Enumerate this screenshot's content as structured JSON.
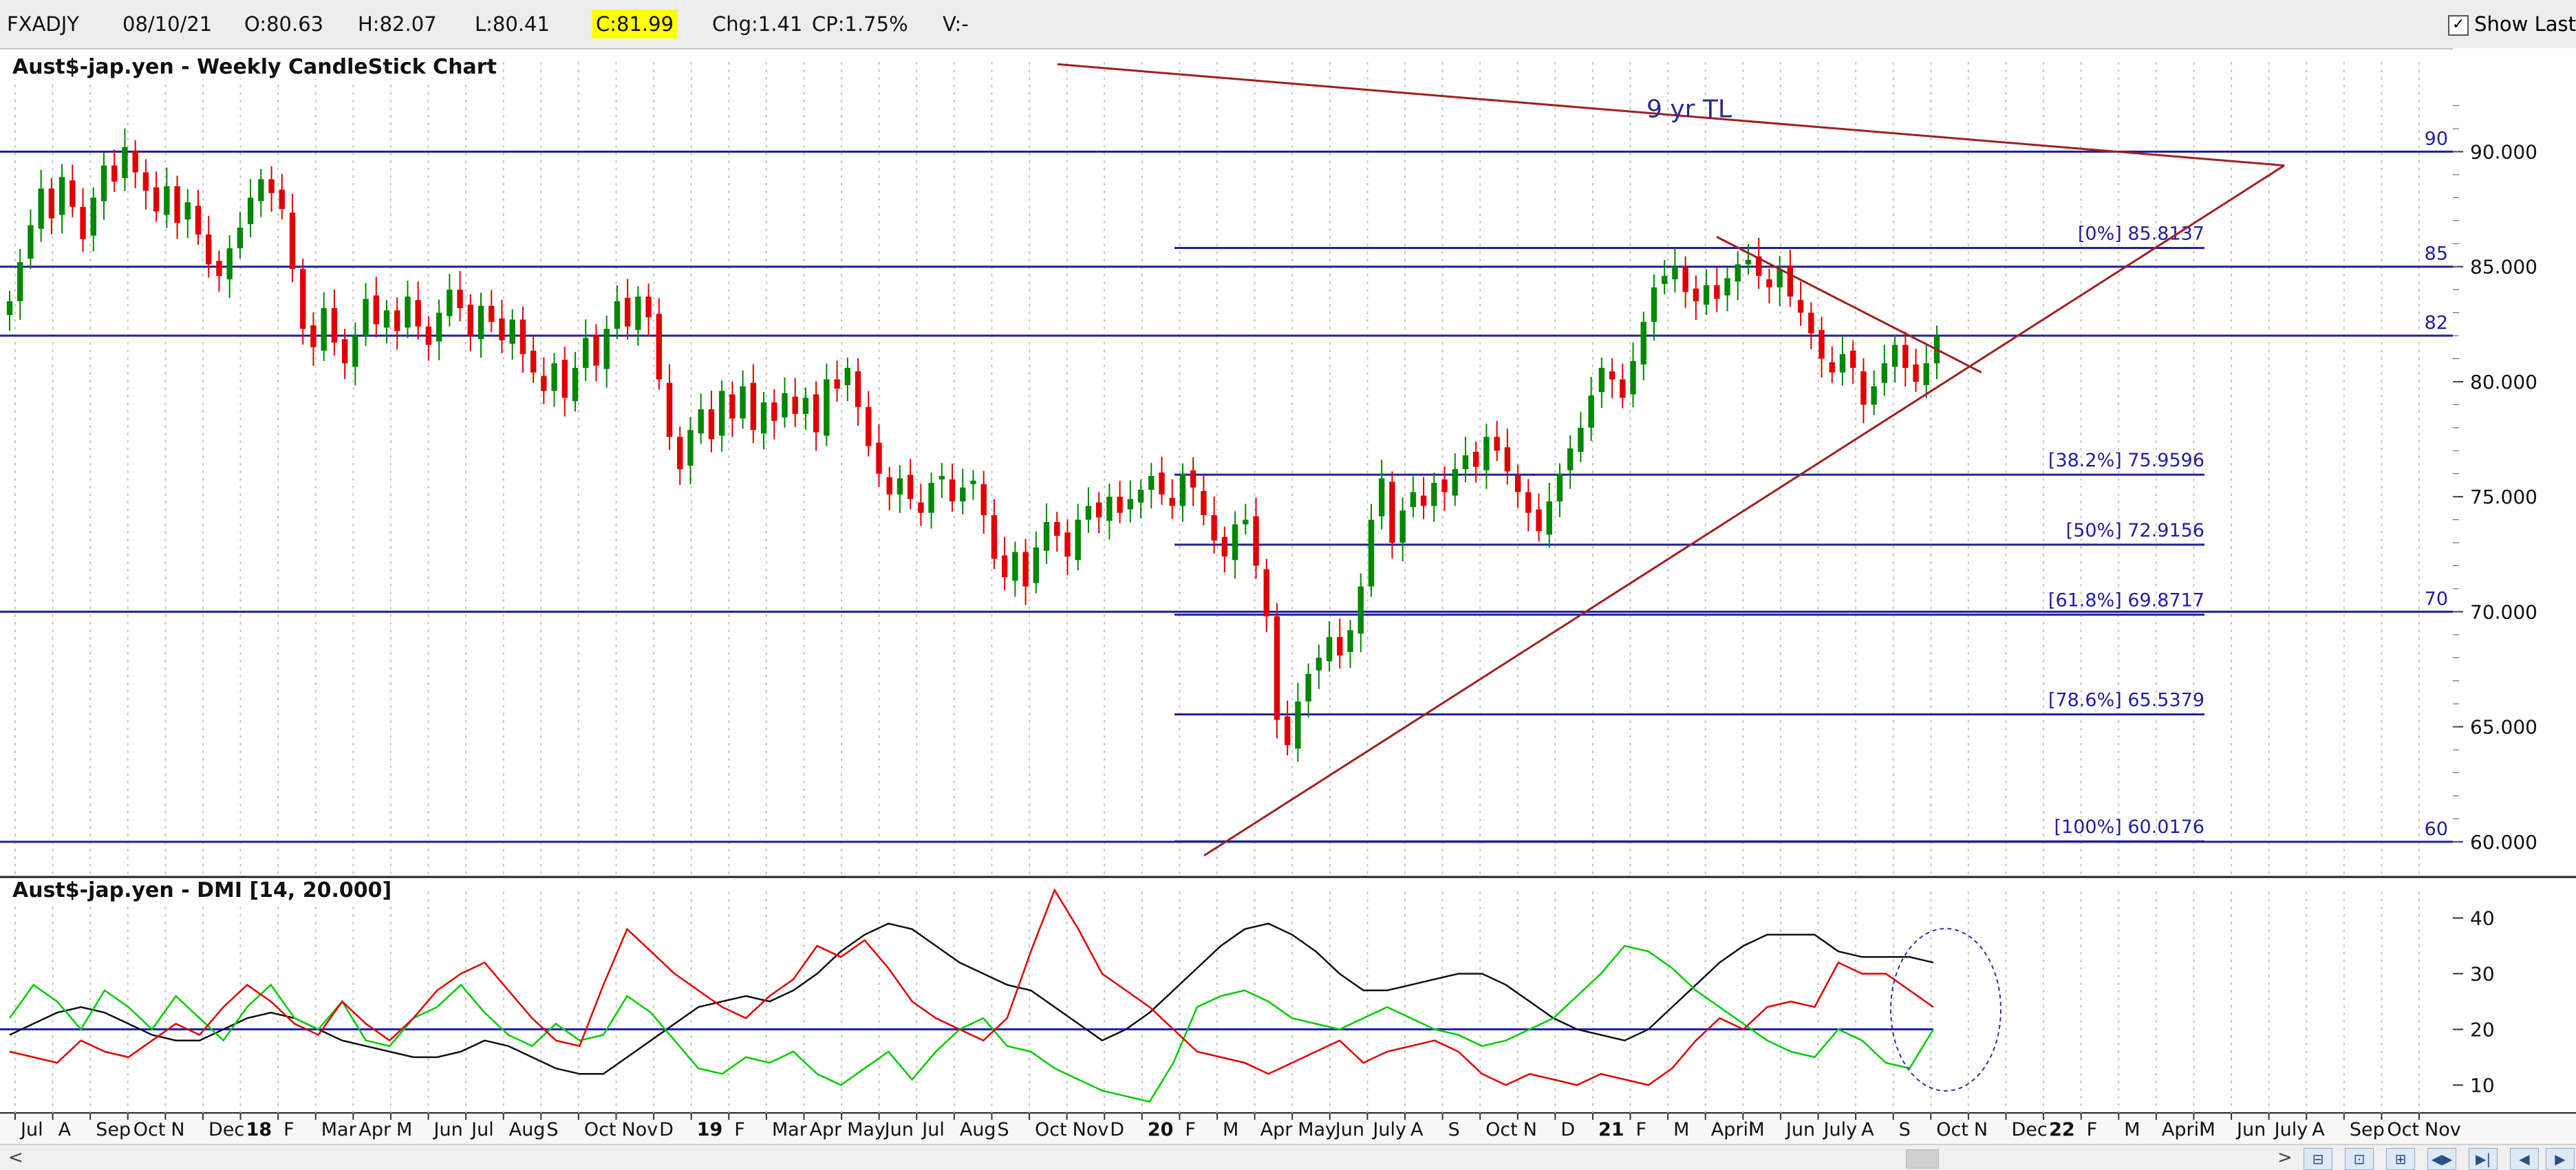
{
  "header": {
    "symbol": "FXADJY",
    "date": "08/10/21",
    "open": "O:80.63",
    "high": "H:82.07",
    "low": "L:80.41",
    "close": "C:81.99",
    "change": "Chg:1.41",
    "change_pct": "CP:1.75%",
    "volume": "V:-",
    "show_last_label": "Show Last",
    "show_last_checked": true,
    "close_highlight_color": "#ffff00"
  },
  "chart_data": [
    {
      "type": "candlestick",
      "title": "Aust$-jap.yen - Weekly CandleStick Chart",
      "y_axis_side": "right",
      "ylim": [
        58.5,
        94.5
      ],
      "y_ticks": [
        "60.000",
        "65.000",
        "70.000",
        "75.000",
        "80.000",
        "85.000",
        "90.000"
      ],
      "x_ticks": [
        "Jul",
        "A",
        "Sep",
        "Oct",
        "N",
        "Dec",
        "18",
        "F",
        "Mar",
        "Apr",
        "M",
        "Jun",
        "Jul",
        "Aug",
        "S",
        "Oct",
        "Nov",
        "D",
        "19",
        "F",
        "Mar",
        "Apr",
        "May",
        "Jun",
        "Jul",
        "Aug",
        "S",
        "Oct",
        "Nov",
        "D",
        "20",
        "F",
        "M",
        "Apr",
        "May",
        "Jun",
        "July",
        "A",
        "S",
        "Oct",
        "N",
        "D",
        "21",
        "F",
        "M",
        "April",
        "M",
        "Jun",
        "July",
        "A",
        "S",
        "Oct",
        "N",
        "Dec",
        "22",
        "F",
        "M",
        "April",
        "M",
        "Jun",
        "July",
        "A",
        "Sep",
        "Oct",
        "Nov"
      ],
      "bull_color": "#008800",
      "bear_color": "#e00000",
      "weekly_closes": [
        83.5,
        85.2,
        86.8,
        88.4,
        87.1,
        88.9,
        87.6,
        86.2,
        88.0,
        89.4,
        88.7,
        90.2,
        89.1,
        88.3,
        87.4,
        88.5,
        86.9,
        87.8,
        86.4,
        85.1,
        84.6,
        85.8,
        86.7,
        88.0,
        88.8,
        88.2,
        87.5,
        84.9,
        82.3,
        81.5,
        83.2,
        81.7,
        80.8,
        82.0,
        83.6,
        82.5,
        83.1,
        82.2,
        83.7,
        82.4,
        81.6,
        83.0,
        84.0,
        83.2,
        82.0,
        83.3,
        82.6,
        81.8,
        82.7,
        81.2,
        80.4,
        79.6,
        80.8,
        79.3,
        80.6,
        81.9,
        80.7,
        82.3,
        83.5,
        82.4,
        83.7,
        82.8,
        80.1,
        77.6,
        76.2,
        77.9,
        78.8,
        77.5,
        79.6,
        78.4,
        79.8,
        77.9,
        79.1,
        78.3,
        79.5,
        78.6,
        79.3,
        77.8,
        80.1,
        79.7,
        80.6,
        78.9,
        77.2,
        76.0,
        75.1,
        75.8,
        74.9,
        74.3,
        75.6,
        75.9,
        74.8,
        75.4,
        75.7,
        74.2,
        72.3,
        71.5,
        72.6,
        71.1,
        72.8,
        73.9,
        73.3,
        72.4,
        74.0,
        74.6,
        74.1,
        75.0,
        74.3,
        74.9,
        75.3,
        75.9,
        75.1,
        74.6,
        76.0,
        75.4,
        74.2,
        73.1,
        72.4,
        73.8,
        74.0,
        72.0,
        69.8,
        65.3,
        64.2,
        66.1,
        67.3,
        68.0,
        68.9,
        68.1,
        69.2,
        71.1,
        74.0,
        75.8,
        73.0,
        74.4,
        75.2,
        74.6,
        75.6,
        75.2,
        76.2,
        76.8,
        76.3,
        77.6,
        77.0,
        76.1,
        75.2,
        74.3,
        73.5,
        74.8,
        76.0,
        77.1,
        78.0,
        79.4,
        80.6,
        80.1,
        79.3,
        80.9,
        82.6,
        84.1,
        84.6,
        85.0,
        83.9,
        83.5,
        84.2,
        83.6,
        84.5,
        85.1,
        85.3,
        84.6,
        84.1,
        84.9,
        83.7,
        83.0,
        82.1,
        81.0,
        80.4,
        81.2,
        80.6,
        79.0,
        79.8,
        80.8,
        81.6,
        80.6,
        80.0,
        80.8,
        81.99
      ],
      "horizontal_levels": [
        {
          "value": 90,
          "label": "90"
        },
        {
          "value": 85,
          "label": "85"
        },
        {
          "value": 82,
          "label": "82"
        },
        {
          "value": 70,
          "label": "70"
        },
        {
          "value": 60,
          "label": "60"
        }
      ],
      "fibonacci_levels": [
        {
          "value": 85.8137,
          "label": "[0%] 85.8137"
        },
        {
          "value": 75.9596,
          "label": "[38.2%] 75.9596"
        },
        {
          "value": 72.9156,
          "label": "[50%] 72.9156"
        },
        {
          "value": 69.8717,
          "label": "[61.8%] 69.8717"
        },
        {
          "value": 65.5379,
          "label": "[78.6%] 65.5379"
        },
        {
          "value": 60.0176,
          "label": "[100%] 60.0176"
        }
      ],
      "annotation_text": "9 yr TL",
      "level_line_color": "#2020a0",
      "trendline_color": "#a02020"
    },
    {
      "type": "line",
      "title": "Aust$-jap.yen - DMI [14, 20.000]",
      "ylim": [
        5,
        46
      ],
      "y_ticks": [
        "10",
        "20",
        "30",
        "40"
      ],
      "threshold": 20,
      "series": [
        {
          "key": "adx",
          "color": "#111111",
          "values": [
            19,
            21,
            23,
            24,
            23,
            21,
            19,
            18,
            18,
            20,
            22,
            23,
            22,
            20,
            18,
            17,
            16,
            15,
            15,
            16,
            18,
            17,
            15,
            13,
            12,
            12,
            15,
            18,
            21,
            24,
            25,
            26,
            25,
            27,
            30,
            34,
            37,
            39,
            38,
            35,
            32,
            30,
            28,
            27,
            24,
            21,
            18,
            20,
            23,
            27,
            31,
            35,
            38,
            39,
            37,
            34,
            30,
            27,
            27,
            28,
            29,
            30,
            30,
            28,
            25,
            22,
            20,
            19,
            18,
            20,
            24,
            28,
            32,
            35,
            37,
            37,
            37,
            34,
            33,
            33,
            33,
            32
          ]
        },
        {
          "key": "plus_di",
          "color": "#00cc00",
          "values": [
            22,
            28,
            25,
            20,
            27,
            24,
            20,
            26,
            22,
            18,
            24,
            28,
            22,
            20,
            25,
            18,
            17,
            22,
            24,
            28,
            23,
            19,
            17,
            21,
            18,
            19,
            26,
            23,
            18,
            13,
            12,
            15,
            14,
            16,
            12,
            10,
            13,
            16,
            11,
            16,
            20,
            22,
            17,
            16,
            13,
            11,
            9,
            8,
            7,
            14,
            24,
            26,
            27,
            25,
            22,
            21,
            20,
            22,
            24,
            22,
            20,
            19,
            17,
            18,
            20,
            22,
            26,
            30,
            35,
            34,
            31,
            27,
            24,
            21,
            18,
            16,
            15,
            20,
            18,
            14,
            13,
            20
          ]
        },
        {
          "key": "minus_di",
          "color": "#e00000",
          "values": [
            16,
            15,
            14,
            18,
            16,
            15,
            18,
            21,
            19,
            24,
            28,
            25,
            21,
            19,
            25,
            21,
            18,
            22,
            27,
            30,
            32,
            27,
            22,
            18,
            17,
            28,
            38,
            34,
            30,
            27,
            24,
            22,
            26,
            29,
            35,
            33,
            36,
            31,
            25,
            22,
            20,
            18,
            22,
            34,
            45,
            38,
            30,
            27,
            24,
            20,
            16,
            15,
            14,
            12,
            14,
            16,
            18,
            14,
            16,
            17,
            18,
            16,
            12,
            10,
            12,
            11,
            10,
            12,
            11,
            10,
            13,
            18,
            22,
            20,
            24,
            25,
            24,
            32,
            30,
            30,
            27,
            24
          ]
        }
      ]
    }
  ]
}
